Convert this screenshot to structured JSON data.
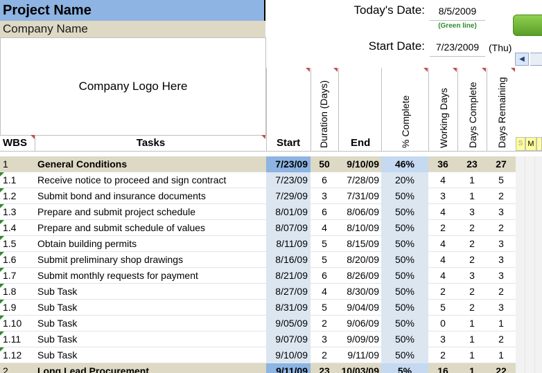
{
  "project": {
    "name": "Project Name",
    "company": "Company Name",
    "logo_text": "Company Logo Here"
  },
  "dates": {
    "today_label": "Today's Date:",
    "today_value": "8/5/2009",
    "today_note": "(Green line)",
    "start_label": "Start Date:",
    "start_value": "7/23/2009",
    "start_day": "(Thu)"
  },
  "controls": {
    "scroll_left_icon": "chevron-left-icon"
  },
  "columns": {
    "wbs": "WBS",
    "tasks": "Tasks",
    "start": "Start",
    "duration": "Duration (Days)",
    "end": "End",
    "pct": "% Complete",
    "working": "Working Days",
    "done": "Days Complete",
    "remaining": "Days Remaining",
    "day_s": "S",
    "day_m": "M"
  },
  "rows": [
    {
      "wbs": "1",
      "task": "General Conditions",
      "start": "7/23/09",
      "dur": "50",
      "end": "9/10/09",
      "pct": "46%",
      "work": "36",
      "done": "23",
      "rem": "27",
      "summary": true
    },
    {
      "wbs": "1.1",
      "task": "Receive notice to proceed and sign contract",
      "start": "7/23/09",
      "dur": "6",
      "end": "7/28/09",
      "pct": "20%",
      "work": "4",
      "done": "1",
      "rem": "5"
    },
    {
      "wbs": "1.2",
      "task": "Submit bond and insurance documents",
      "start": "7/29/09",
      "dur": "3",
      "end": "7/31/09",
      "pct": "50%",
      "work": "3",
      "done": "1",
      "rem": "2"
    },
    {
      "wbs": "1.3",
      "task": "Prepare and submit project schedule",
      "start": "8/01/09",
      "dur": "6",
      "end": "8/06/09",
      "pct": "50%",
      "work": "4",
      "done": "3",
      "rem": "3"
    },
    {
      "wbs": "1.4",
      "task": "Prepare and submit schedule of values",
      "start": "8/07/09",
      "dur": "4",
      "end": "8/10/09",
      "pct": "50%",
      "work": "2",
      "done": "2",
      "rem": "2"
    },
    {
      "wbs": "1.5",
      "task": "Obtain building permits",
      "start": "8/11/09",
      "dur": "5",
      "end": "8/15/09",
      "pct": "50%",
      "work": "4",
      "done": "2",
      "rem": "3"
    },
    {
      "wbs": "1.6",
      "task": "Submit preliminary shop drawings",
      "start": "8/16/09",
      "dur": "5",
      "end": "8/20/09",
      "pct": "50%",
      "work": "4",
      "done": "2",
      "rem": "3"
    },
    {
      "wbs": "1.7",
      "task": "Submit monthly requests for payment",
      "start": "8/21/09",
      "dur": "6",
      "end": "8/26/09",
      "pct": "50%",
      "work": "4",
      "done": "3",
      "rem": "3"
    },
    {
      "wbs": "1.8",
      "task": "Sub Task",
      "start": "8/27/09",
      "dur": "4",
      "end": "8/30/09",
      "pct": "50%",
      "work": "2",
      "done": "2",
      "rem": "2"
    },
    {
      "wbs": "1.9",
      "task": "Sub Task",
      "start": "8/31/09",
      "dur": "5",
      "end": "9/04/09",
      "pct": "50%",
      "work": "5",
      "done": "2",
      "rem": "3"
    },
    {
      "wbs": "1.10",
      "task": "Sub Task",
      "start": "9/05/09",
      "dur": "2",
      "end": "9/06/09",
      "pct": "50%",
      "work": "0",
      "done": "1",
      "rem": "1"
    },
    {
      "wbs": "1.11",
      "task": "Sub Task",
      "start": "9/07/09",
      "dur": "3",
      "end": "9/09/09",
      "pct": "50%",
      "work": "3",
      "done": "1",
      "rem": "2"
    },
    {
      "wbs": "1.12",
      "task": "Sub Task",
      "start": "9/10/09",
      "dur": "2",
      "end": "9/11/09",
      "pct": "50%",
      "work": "2",
      "done": "1",
      "rem": "1"
    },
    {
      "wbs": "2",
      "task": "Long Lead Procurement",
      "start": "9/11/09",
      "dur": "23",
      "end": "10/03/09",
      "pct": "5%",
      "work": "16",
      "done": "1",
      "rem": "22",
      "summary": true
    }
  ]
}
